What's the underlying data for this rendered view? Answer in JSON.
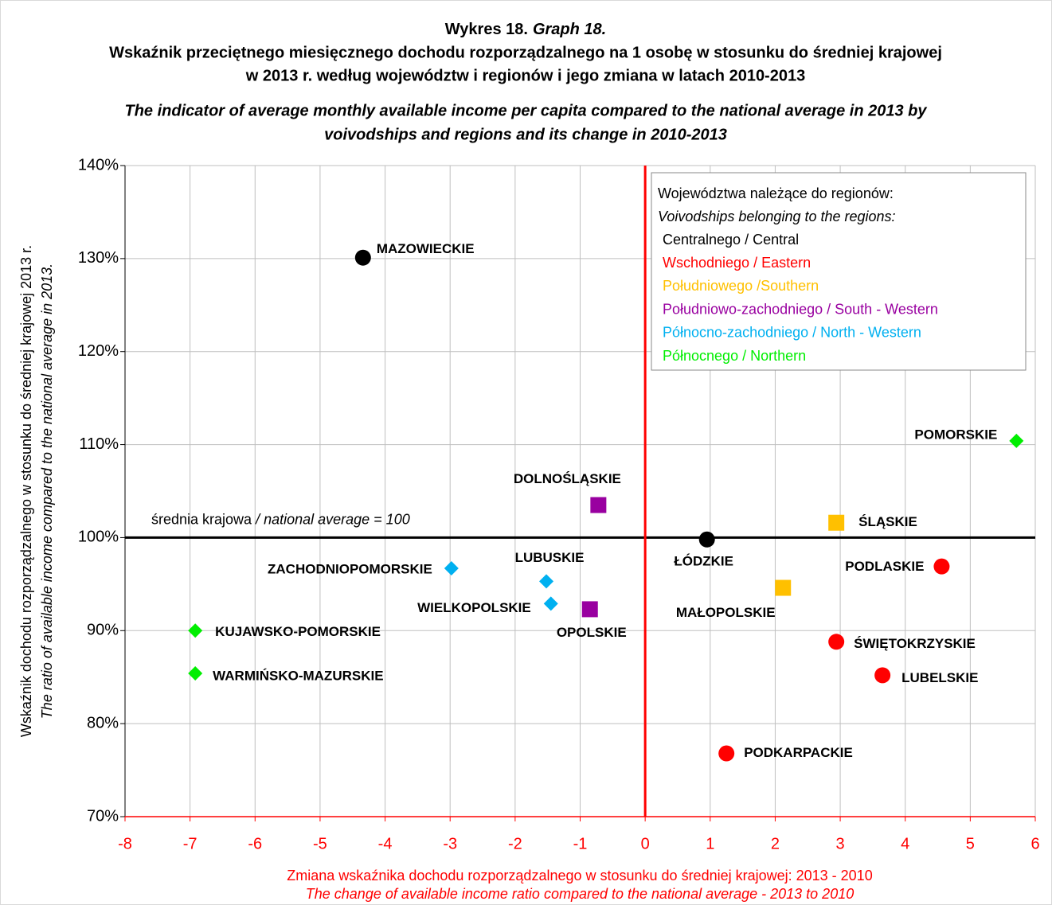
{
  "chart_data": {
    "type": "scatter",
    "figure_label": "Wykres 18.",
    "figure_label_en": "Graph 18.",
    "title": [
      "Wskaźnik przeciętnego miesięcznego dochodu rozporządzalnego na 1 osobę w stosunku do średniej krajowej",
      "w 2013 r. według województw i regionów i jego zmiana w latach 2010-2013"
    ],
    "subtitle": [
      "The indicator of average monthly available income per capita compared to the national average in 2013 by",
      "voivodships and regions and its change in 2010-2013"
    ],
    "x_label": [
      "Zmiana wskaźnika dochodu rozporządzalnego w stosunku do średniej krajowej: 2013 -  2010",
      "The change of available income ratio compared to the national average - 2013 to 2010"
    ],
    "y_label": [
      "Wskaźnik dochodu rozporządzalnego w stosunku do średniej krajowej  2013 r.",
      "The ratio of available income  compared to the national average in 2013."
    ],
    "legend_title": [
      "Województwa należące do regionów:",
      "Voivodships belonging to the regions:"
    ],
    "legend_position": "upper right",
    "grid": true,
    "xlim": [
      -8,
      6
    ],
    "xticks": [
      -8,
      -7,
      -6,
      -5,
      -4,
      -3,
      -2,
      -1,
      0,
      1,
      2,
      3,
      4,
      5,
      6
    ],
    "ylim": [
      70,
      140
    ],
    "yticks": [
      {
        "value": 70,
        "label": "70%"
      },
      {
        "value": 80,
        "label": "80%"
      },
      {
        "value": 90,
        "label": "90%"
      },
      {
        "value": 100,
        "label": "100%"
      },
      {
        "value": 110,
        "label": "110%"
      },
      {
        "value": 120,
        "label": "120%"
      },
      {
        "value": 130,
        "label": "130%"
      },
      {
        "value": 140,
        "label": "140%"
      }
    ],
    "reference_line_y": 100,
    "reference_line_x": 0,
    "reference_label": [
      "średnia krajowa",
      " / national average = 100"
    ],
    "series": [
      {
        "name": "Centralnego / Central",
        "color": "#000000",
        "marker": "circle",
        "labels": [
          "MAZOWIECKIE",
          "ŁÓDZKIE"
        ],
        "x": [
          -4.34,
          0.95
        ],
        "values": [
          130.1,
          99.8
        ]
      },
      {
        "name": "Wschodniego / Eastern",
        "color": "#ff0000",
        "marker": "circle",
        "labels": [
          "PODLASKIE",
          "ŚWIĘTOKRZYSKIE",
          "LUBELSKIE",
          "PODKARPACKIE"
        ],
        "x": [
          4.56,
          2.94,
          3.65,
          1.25
        ],
        "values": [
          96.9,
          88.8,
          85.2,
          76.8
        ]
      },
      {
        "name": "Południowego /Southern",
        "color": "#ffc000",
        "marker": "square",
        "labels": [
          "ŚLĄSKIE",
          "MAŁOPOLSKIE"
        ],
        "x": [
          2.94,
          2.12
        ],
        "values": [
          101.6,
          94.6
        ]
      },
      {
        "name": "Południowo-zachodniego / South - Western",
        "color": "#9900a0",
        "marker": "square",
        "labels": [
          "DOLNOŚLĄSKIE",
          "OPOLSKIE"
        ],
        "x": [
          -0.72,
          -0.85
        ],
        "values": [
          103.5,
          92.3
        ]
      },
      {
        "name": "Północno-zachodniego / North - Western",
        "color": "#00b0f0",
        "marker": "diamond",
        "labels": [
          "ZACHODNIOPOMORSKIE",
          "LUBUSKIE",
          "WIELKOPOLSKIE"
        ],
        "x": [
          -2.98,
          -1.52,
          -1.45
        ],
        "values": [
          96.7,
          95.3,
          92.9
        ]
      },
      {
        "name": "Północnego / Northern",
        "color": "#00ee00",
        "marker": "diamond",
        "labels": [
          "POMORSKIE",
          "KUJAWSKO-POMORSKIE",
          "WARMIŃSKO-MAZURSKIE"
        ],
        "x": [
          5.71,
          -6.92,
          -6.92
        ],
        "values": [
          110.4,
          90.0,
          85.4
        ]
      }
    ]
  }
}
